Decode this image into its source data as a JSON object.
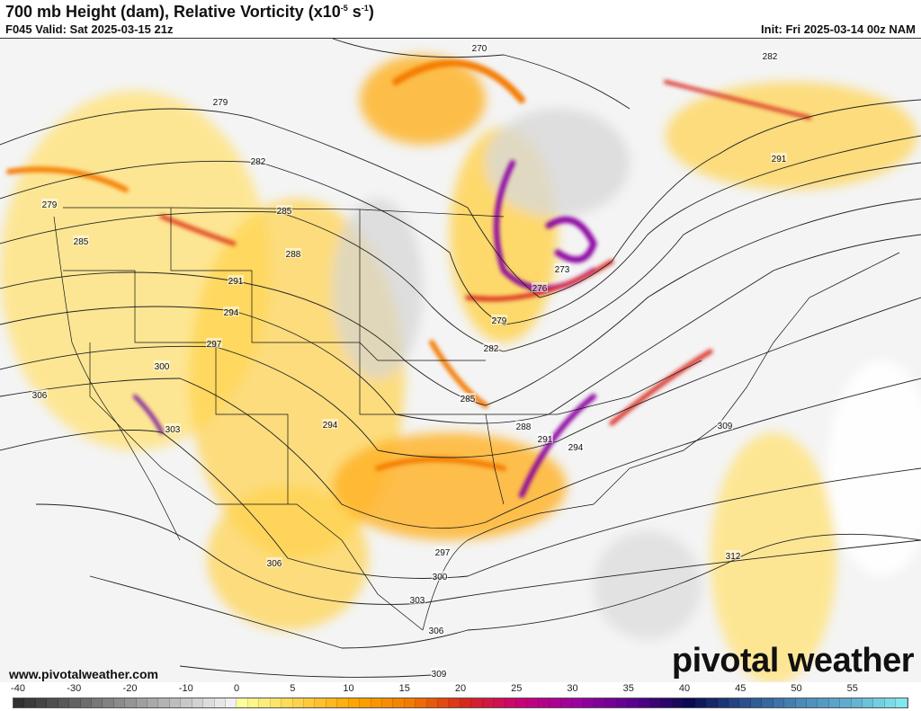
{
  "header": {
    "title_main": "700 mb Height (dam), Relative Vorticity (x10",
    "title_sup1": "-5",
    "title_mid": " s",
    "title_sup2": "-1",
    "title_end": ")",
    "valid": "F045 Valid: Sat 2025-03-15 21z",
    "init": "Init: Fri 2025-03-14 00z NAM"
  },
  "footer": {
    "website": "www.pivotalweather.com",
    "logo": "pivotal weather"
  },
  "colorbar": {
    "tick_labels": [
      "-40",
      "-30",
      "-20",
      "-10",
      "0",
      "5",
      "10",
      "15",
      "20",
      "25",
      "30",
      "35",
      "40",
      "45",
      "50",
      "55"
    ],
    "range": [
      -40,
      60
    ],
    "color_anchors": [
      {
        "v": -40,
        "c": "#303030"
      },
      {
        "v": -2,
        "c": "#f0f0f0"
      },
      {
        "v": 0,
        "c": "#ffff99"
      },
      {
        "v": 5,
        "c": "#ffd24a"
      },
      {
        "v": 10,
        "c": "#ffa600"
      },
      {
        "v": 15,
        "c": "#f47a00"
      },
      {
        "v": 20,
        "c": "#d8281c"
      },
      {
        "v": 25,
        "c": "#c8007a"
      },
      {
        "v": 30,
        "c": "#9a00a0"
      },
      {
        "v": 35,
        "c": "#5a0090"
      },
      {
        "v": 40,
        "c": "#0a0a50"
      },
      {
        "v": 45,
        "c": "#2a5090"
      },
      {
        "v": 50,
        "c": "#4a8ab8"
      },
      {
        "v": 55,
        "c": "#64b4d4"
      },
      {
        "v": 60,
        "c": "#88f4f4"
      }
    ]
  },
  "map": {
    "height_contour_labels": [
      "270",
      "282",
      "279",
      "282",
      "291",
      "279",
      "285",
      "285",
      "288",
      "291",
      "273",
      "276",
      "294",
      "279",
      "297",
      "282",
      "300",
      "306",
      "285",
      "303",
      "294",
      "288",
      "291",
      "294",
      "309",
      "297",
      "306",
      "312",
      "300",
      "303",
      "306",
      "309"
    ],
    "colors": {
      "light": "#ffef9a",
      "yellow": "#ffd24a",
      "orange": "#ffa600",
      "red": "#e0401a",
      "purple": "#8a00a0",
      "grey": "#cfcfcf",
      "contour": "#222222",
      "border": "#111111"
    }
  }
}
